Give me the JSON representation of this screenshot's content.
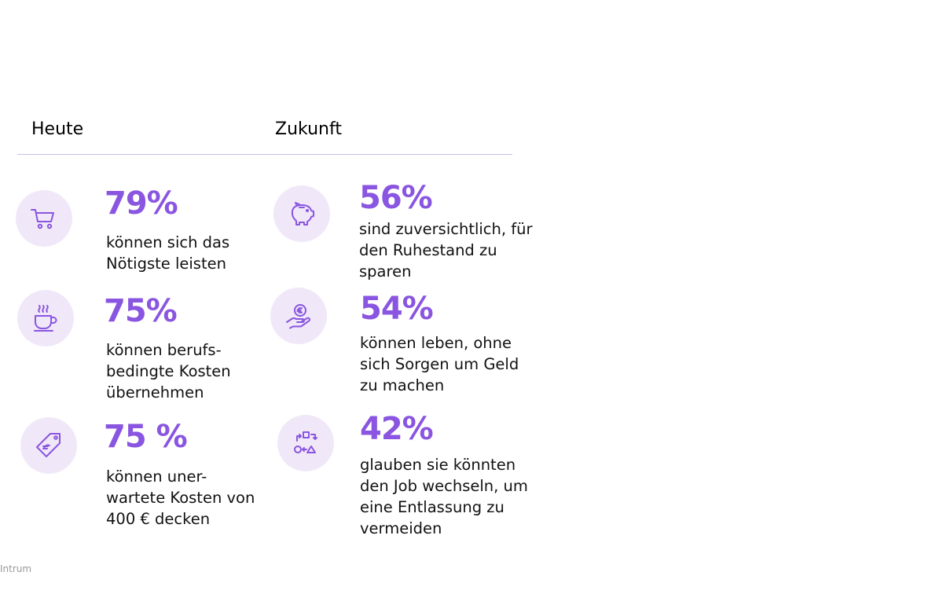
{
  "headers": {
    "today": "Heute",
    "future": "Zukunft"
  },
  "colors": {
    "accent": "#8a55e0",
    "icon_bg": "#f0e8f8",
    "divider": "#c9bfe9"
  },
  "today": [
    {
      "icon": "shopping-cart-icon",
      "percent": "79%",
      "lines": [
        "können sich das",
        "Nötigste leisten"
      ]
    },
    {
      "icon": "coffee-cup-icon",
      "percent": "75%",
      "lines": [
        "können berufs-",
        "bedingte Kosten",
        "übernehmen"
      ]
    },
    {
      "icon": "price-tag-icon",
      "percent": "75 %",
      "lines": [
        "können uner-",
        "wartete Kosten von",
        "400 € decken"
      ]
    }
  ],
  "future": [
    {
      "icon": "piggy-bank-icon",
      "percent": "56%",
      "lines": [
        "sind zuversichtlich, für",
        "den Ruhestand zu",
        "sparen"
      ]
    },
    {
      "icon": "hand-coin-icon",
      "percent": "54%",
      "lines": [
        "können leben, ohne",
        "sich Sorgen um Geld",
        "zu machen"
      ]
    },
    {
      "icon": "shapes-switch-icon",
      "percent": "42%",
      "lines": [
        "glauben sie könnten",
        "den Job wechseln, um",
        "eine Entlassung zu",
        "vermeiden"
      ]
    }
  ],
  "source": "Intrum"
}
